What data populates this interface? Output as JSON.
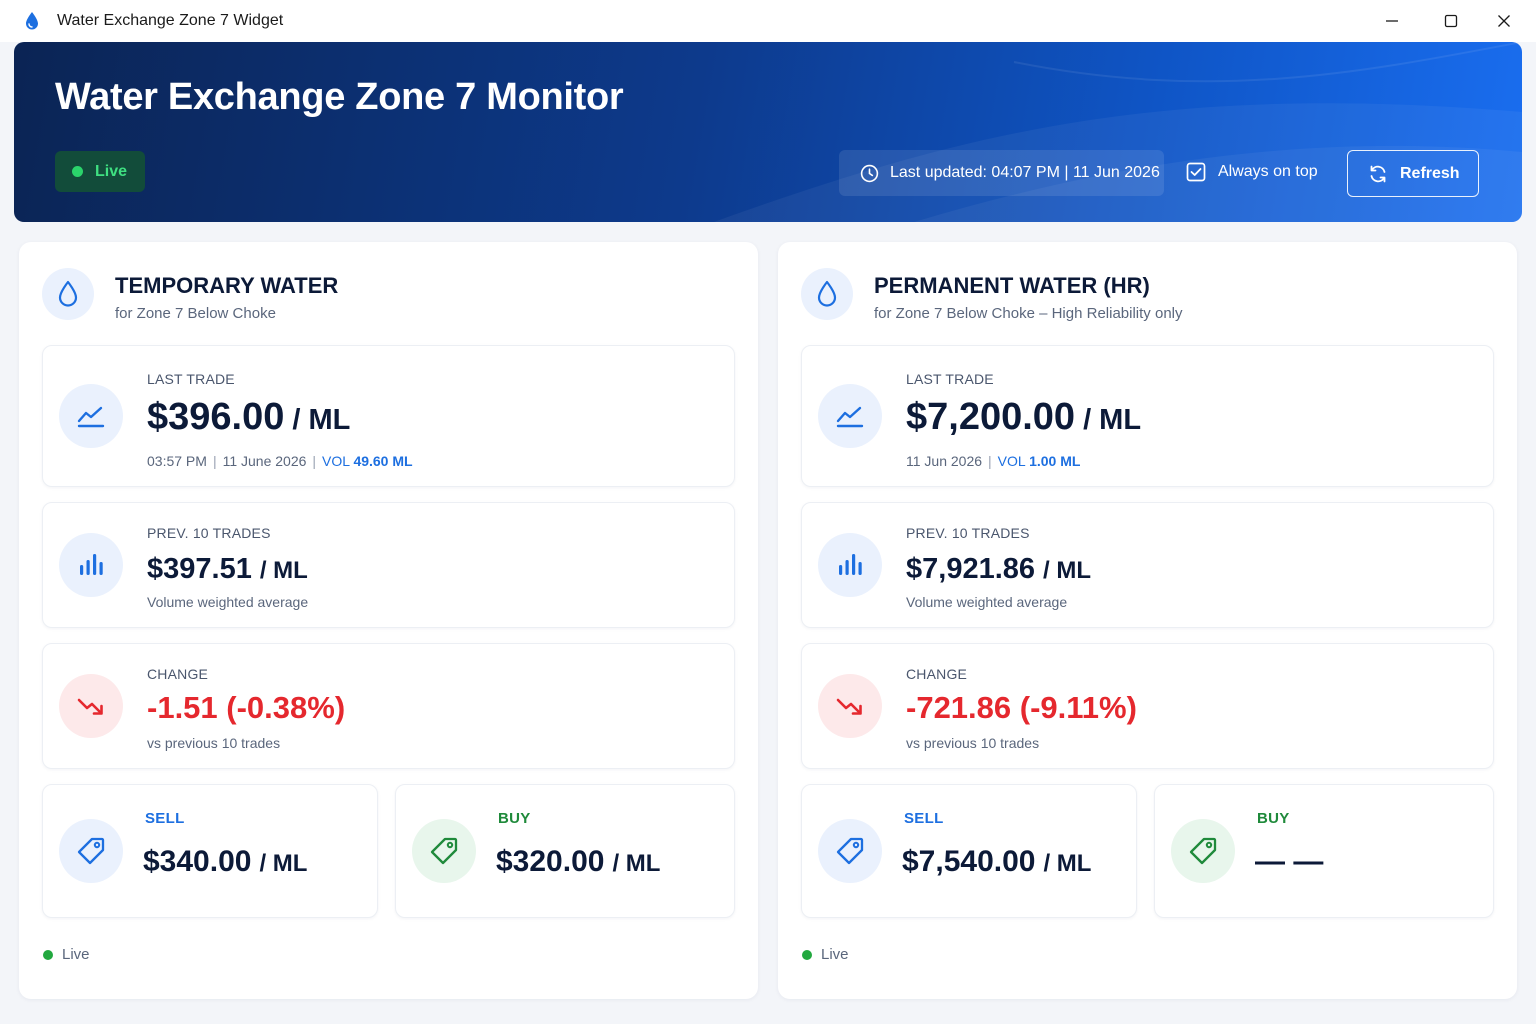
{
  "window": {
    "title": "Water Exchange Zone 7 Widget"
  },
  "header": {
    "title": "Water Exchange Zone 7 Monitor",
    "live_label": "Live",
    "last_updated": "Last updated: 04:07 PM | 11 Jun 2026",
    "always_on_top_label": "Always on top",
    "always_on_top_checked": true,
    "refresh_label": "Refresh"
  },
  "temporary": {
    "title": "TEMPORARY WATER",
    "subtitle": "for Zone 7 Below Choke",
    "last_trade": {
      "label": "LAST TRADE",
      "price": "$396.00",
      "unit": "/ ML",
      "time": "03:57 PM",
      "date": "11 June 2026",
      "vol_label": "VOL",
      "vol_value": "49.60 ML"
    },
    "prev_trades": {
      "label": "PREV. 10 TRADES",
      "price": "$397.51",
      "unit": "/ ML",
      "note": "Volume weighted average"
    },
    "change": {
      "label": "CHANGE",
      "value": "-1.51 (-0.38%)",
      "note": "vs previous 10 trades"
    },
    "sell": {
      "label": "SELL",
      "price": "$340.00",
      "unit": "/ ML"
    },
    "buy": {
      "label": "BUY",
      "price": "$320.00",
      "unit": "/ ML"
    },
    "status": "Live"
  },
  "permanent": {
    "title": "PERMANENT WATER (HR)",
    "subtitle": "for Zone 7 Below Choke – High Reliability only",
    "last_trade": {
      "label": "LAST TRADE",
      "price": "$7,200.00",
      "unit": "/ ML",
      "date": "11 Jun 2026",
      "vol_label": "VOL",
      "vol_value": "1.00 ML"
    },
    "prev_trades": {
      "label": "PREV. 10 TRADES",
      "price": "$7,921.86",
      "unit": "/ ML",
      "note": "Volume weighted average"
    },
    "change": {
      "label": "CHANGE",
      "value": "-721.86 (-9.11%)",
      "note": "vs previous 10 trades"
    },
    "sell": {
      "label": "SELL",
      "price": "$7,540.00",
      "unit": "/ ML"
    },
    "buy": {
      "label": "BUY",
      "price": "— —"
    },
    "status": "Live"
  },
  "colors": {
    "accent_blue": "#1d6fe0",
    "negative_red": "#e5282e",
    "positive_green": "#1f8a3b",
    "live_green": "#2bd46b",
    "banner_dark": "#0b2454",
    "banner_light": "#1a6ef0"
  },
  "icons": {
    "app": "water-drop-icon",
    "last_trade": "trend-line-icon",
    "prev_trades": "bar-chart-icon",
    "change": "trend-down-icon",
    "sell": "price-tag-icon",
    "buy": "price-tag-icon"
  }
}
